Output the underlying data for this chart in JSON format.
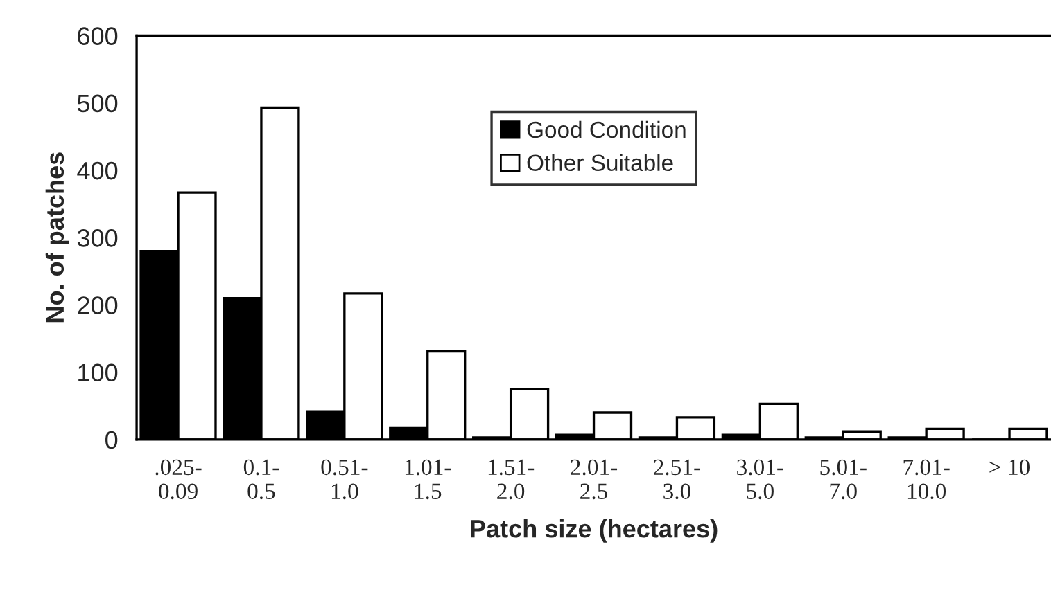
{
  "chart_data": {
    "type": "bar",
    "xlabel": "Patch size (hectares)",
    "ylabel": "No. of patches",
    "categories": [
      ".025-\n0.09",
      "0.1-\n0.5",
      "0.51-\n1.0",
      "1.01-\n1.5",
      "1.51-\n2.0",
      "2.01-\n2.5",
      "2.51-\n3.0",
      "3.01-\n5.0",
      "5.01-\n7.0",
      "7.01-\n10.0",
      "> 10"
    ],
    "series": [
      {
        "name": "Good Condition",
        "color": "#000000",
        "values": [
          280,
          210,
          42,
          17,
          3,
          7,
          3,
          7,
          3,
          3,
          0
        ]
      },
      {
        "name": "Other Suitable",
        "color": "#ffffff",
        "values": [
          367,
          493,
          217,
          131,
          75,
          40,
          33,
          53,
          12,
          16,
          16
        ]
      }
    ],
    "ylim": [
      0,
      600
    ],
    "yticks": [
      0,
      100,
      200,
      300,
      400,
      500,
      600
    ],
    "grid": false,
    "legend": "top"
  }
}
